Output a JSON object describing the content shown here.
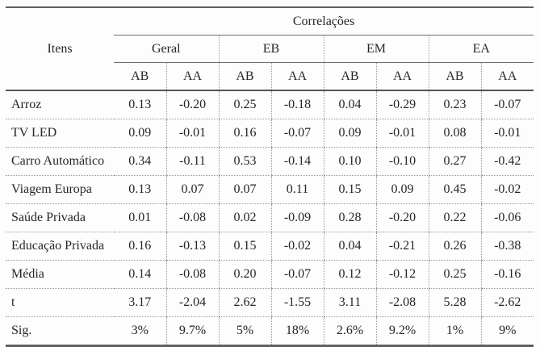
{
  "chart_data": {
    "type": "table",
    "title": "Correlações",
    "items_header": "Itens",
    "groups": [
      "Geral",
      "EB",
      "EM",
      "EA"
    ],
    "sub_columns": [
      "AB",
      "AA"
    ],
    "columns": [
      "Geral AB",
      "Geral AA",
      "EB AB",
      "EB AA",
      "EM AB",
      "EM AA",
      "EA AB",
      "EA AA"
    ],
    "rows": [
      {
        "label": "Arroz",
        "values": [
          "0.13",
          "-0.20",
          "0.25",
          "-0.18",
          "0.04",
          "-0.29",
          "0.23",
          "-0.07"
        ]
      },
      {
        "label": "TV LED",
        "values": [
          "0.09",
          "-0.01",
          "0.16",
          "-0.07",
          "0.09",
          "-0.01",
          "0.08",
          "-0.01"
        ]
      },
      {
        "label": "Carro Automático",
        "values": [
          "0.34",
          "-0.11",
          "0.53",
          "-0.14",
          "0.10",
          "-0.10",
          "0.27",
          "-0.42"
        ]
      },
      {
        "label": "Viagem Europa",
        "values": [
          "0.13",
          "0.07",
          "0.07",
          "0.11",
          "0.15",
          "0.09",
          "0.45",
          "-0.02"
        ]
      },
      {
        "label": "Saúde Privada",
        "values": [
          "0.01",
          "-0.08",
          "0.02",
          "-0.09",
          "0.28",
          "-0.20",
          "0.22",
          "-0.06"
        ]
      },
      {
        "label": "Educação Privada",
        "values": [
          "0.16",
          "-0.13",
          "0.15",
          "-0.02",
          "0.04",
          "-0.21",
          "0.26",
          "-0.38"
        ]
      },
      {
        "label": "Média",
        "values": [
          "0.14",
          "-0.08",
          "0.20",
          "-0.07",
          "0.12",
          "-0.12",
          "0.25",
          "-0.16"
        ]
      },
      {
        "label": "t",
        "values": [
          "3.17",
          "-2.04",
          "2.62",
          "-1.55",
          "3.11",
          "-2.08",
          "5.28",
          "-2.62"
        ]
      },
      {
        "label": "Sig.",
        "values": [
          "3%",
          "9.7%",
          "5%",
          "18%",
          "2.6%",
          "9.2%",
          "1%",
          "9%"
        ]
      }
    ],
    "layout": {
      "solid_rule_color": "#606060",
      "dotted_rule_color": "#9b9b9b",
      "text_color": "#262626",
      "background": "#fdfdfd"
    }
  }
}
